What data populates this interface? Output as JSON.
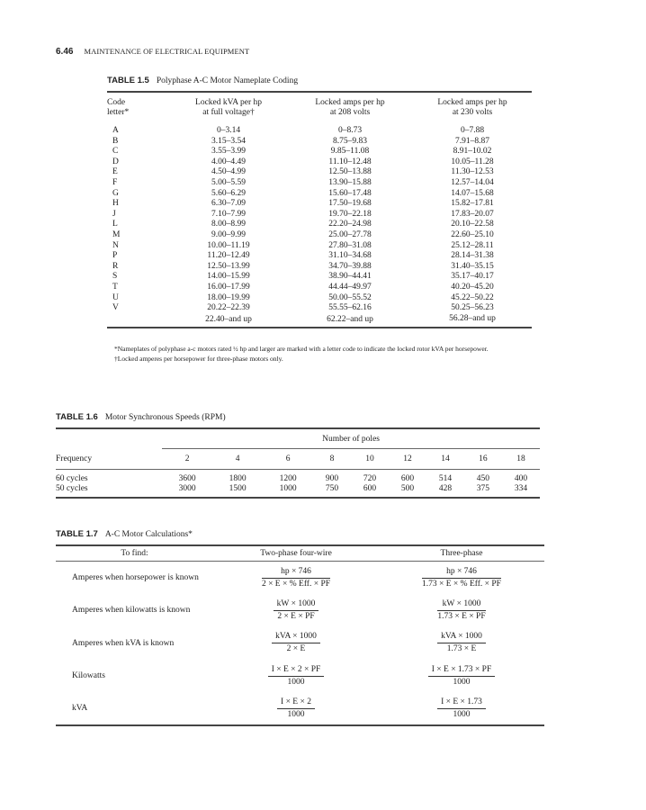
{
  "page_header": {
    "number": "6.46",
    "title": "MAINTENANCE OF ELECTRICAL EQUIPMENT"
  },
  "table_1_5": {
    "label": "TABLE 1.5",
    "title": "Polyphase A-C Motor Nameplate Coding",
    "headers": [
      [
        "Code",
        "letter*"
      ],
      [
        "Locked kVA per hp",
        "at full voltage†"
      ],
      [
        "Locked amps per hp",
        "at 208 volts"
      ],
      [
        "Locked amps per hp",
        "at 230 volts"
      ]
    ],
    "rows": [
      [
        "A",
        "0–3.14",
        "0–8.73",
        "0–7.88"
      ],
      [
        "B",
        "3.15–3.54",
        "8.75–9.83",
        "7.91–8.87"
      ],
      [
        "C",
        "3.55–3.99",
        "9.85–11.08",
        "8.91–10.02"
      ],
      [
        "D",
        "4.00–4.49",
        "11.10–12.48",
        "10.05–11.28"
      ],
      [
        "E",
        "4.50–4.99",
        "12.50–13.88",
        "11.30–12.53"
      ],
      [
        "F",
        "5.00–5.59",
        "13.90–15.88",
        "12.57–14.04"
      ],
      [
        "G",
        "5.60–6.29",
        "15.60–17.48",
        "14.07–15.68"
      ],
      [
        "H",
        "6.30–7.09",
        "17.50–19.68",
        "15.82–17.81"
      ],
      [
        "J",
        "7.10–7.99",
        "19.70–22.18",
        "17.83–20.07"
      ],
      [
        "L",
        "8.00–8.99",
        "22.20–24.98",
        "20.10–22.58"
      ],
      [
        "M",
        "9.00–9.99",
        "25.00–27.78",
        "22.60–25.10"
      ],
      [
        "N",
        "10.00–11.19",
        "27.80–31.08",
        "25.12–28.11"
      ],
      [
        "P",
        "11.20–12.49",
        "31.10–34.68",
        "28.14–31.38"
      ],
      [
        "R",
        "12.50–13.99",
        "34.70–39.88",
        "31.40–35.15"
      ],
      [
        "S",
        "14.00–15.99",
        "38.90–44.41",
        "35.17–40.17"
      ],
      [
        "T",
        "16.00–17.99",
        "44.44–49.97",
        "40.20–45.20"
      ],
      [
        "U",
        "18.00–19.99",
        "50.00–55.52",
        "45.22–50.22"
      ],
      [
        "V",
        "20.22–22.39",
        "55.55–62.16",
        "50.25–56.23"
      ],
      [
        "",
        "22.40–and up",
        "62.22–and up",
        "56.28–and up"
      ]
    ],
    "footnotes": [
      "*Nameplates of polyphase a-c motors rated ½ hp and larger are marked with a letter code to indicate the locked rotor kVA per horsepower.",
      "†Locked amperes per horsepower for three-phase motors only."
    ]
  },
  "table_1_6": {
    "label": "TABLE 1.6",
    "title": "Motor Synchronous Speeds (RPM)",
    "group_header": "Number of poles",
    "headers": [
      "Frequency",
      "2",
      "4",
      "6",
      "8",
      "10",
      "12",
      "14",
      "16",
      "18"
    ],
    "rows": [
      [
        "60 cycles",
        "3600",
        "1800",
        "1200",
        "900",
        "720",
        "600",
        "514",
        "450",
        "400"
      ],
      [
        "50 cycles",
        "3000",
        "1500",
        "1000",
        "750",
        "600",
        "500",
        "428",
        "375",
        "334"
      ]
    ]
  },
  "table_1_7": {
    "label": "TABLE 1.7",
    "title": "A-C Motor Calculations*",
    "headers": [
      "To find:",
      "Two-phase four-wire",
      "Three-phase"
    ],
    "rows": [
      {
        "label": "Amperes when horsepower is known",
        "two_phase": {
          "num": "hp × 746",
          "den": "2 × E × % Eff. × PF"
        },
        "three_phase": {
          "num": "hp × 746",
          "den": "1.73 × E × % Eff. × PF"
        }
      },
      {
        "label": "Amperes when kilowatts is known",
        "two_phase": {
          "num": "kW × 1000",
          "den": "2 × E × PF"
        },
        "three_phase": {
          "num": "kW × 1000",
          "den": "1.73 × E × PF"
        }
      },
      {
        "label": "Amperes when kVA is known",
        "two_phase": {
          "num": "kVA × 1000",
          "den": "2 × E"
        },
        "three_phase": {
          "num": "kVA × 1000",
          "den": "1.73 × E"
        }
      },
      {
        "label": "Kilowatts",
        "two_phase": {
          "num": "I × E × 2 × PF",
          "den": "1000"
        },
        "three_phase": {
          "num": "I × E × 1.73 × PF",
          "den": "1000"
        }
      },
      {
        "label": "kVA",
        "two_phase": {
          "num": "I × E × 2",
          "den": "1000"
        },
        "three_phase": {
          "num": "I × E × 1.73",
          "den": "1000"
        }
      }
    ]
  }
}
